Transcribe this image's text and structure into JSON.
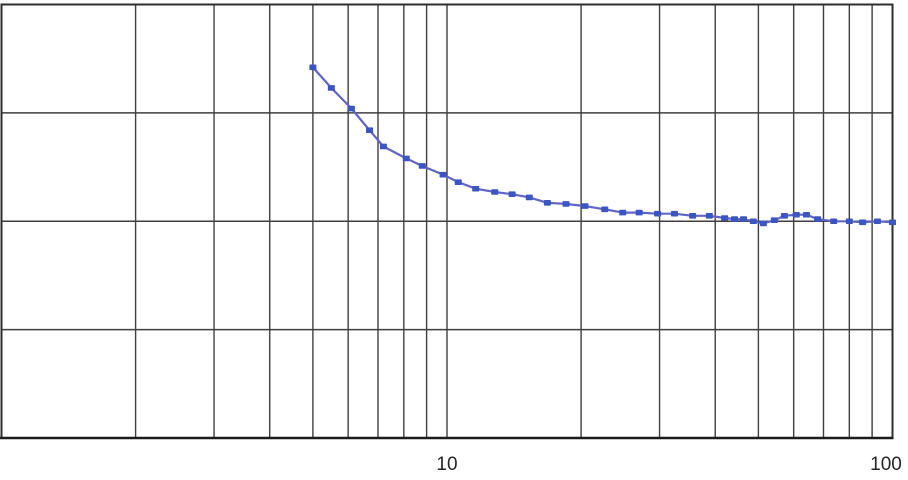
{
  "page": {
    "background": "#ffffff"
  },
  "chart_data": {
    "type": "line",
    "title": "",
    "xlabel": "",
    "ylabel": "",
    "legend": false,
    "grid": true,
    "x_axis": {
      "scale": "log",
      "range": [
        1,
        100
      ],
      "gridlines": [
        1,
        2,
        3,
        4,
        5,
        6,
        7,
        8,
        9,
        10,
        20,
        30,
        40,
        50,
        60,
        70,
        80,
        90,
        100
      ],
      "ticks": [
        {
          "value": 10,
          "label": "10"
        },
        {
          "value": 100,
          "label": "100"
        }
      ]
    },
    "y_axis": {
      "scale": "linear",
      "range": [
        0,
        4
      ],
      "gridline_step": 1,
      "ticks": []
    },
    "series": [
      {
        "marker": "square",
        "marker_color": "#3b55c2",
        "line_color": "#5f65c5",
        "points": [
          [
            5.0,
            3.42
          ],
          [
            5.5,
            3.23
          ],
          [
            6.1,
            3.04
          ],
          [
            6.7,
            2.84
          ],
          [
            7.2,
            2.69
          ],
          [
            8.1,
            2.58
          ],
          [
            8.8,
            2.51
          ],
          [
            9.8,
            2.43
          ],
          [
            10.6,
            2.36
          ],
          [
            11.6,
            2.3
          ],
          [
            12.8,
            2.27
          ],
          [
            14.0,
            2.25
          ],
          [
            15.3,
            2.22
          ],
          [
            16.8,
            2.17
          ],
          [
            18.5,
            2.16
          ],
          [
            20.4,
            2.14
          ],
          [
            22.6,
            2.11
          ],
          [
            24.8,
            2.08
          ],
          [
            27.0,
            2.08
          ],
          [
            29.7,
            2.07
          ],
          [
            32.4,
            2.07
          ],
          [
            35.6,
            2.05
          ],
          [
            38.8,
            2.05
          ],
          [
            42.0,
            2.03
          ],
          [
            44.2,
            2.02
          ],
          [
            46.3,
            2.02
          ],
          [
            48.7,
            2.0
          ],
          [
            51.3,
            1.98
          ],
          [
            54.3,
            2.01
          ],
          [
            57.2,
            2.05
          ],
          [
            60.8,
            2.06
          ],
          [
            64.1,
            2.06
          ],
          [
            67.9,
            2.02
          ],
          [
            73.8,
            2.0
          ],
          [
            80.0,
            2.0
          ],
          [
            85.7,
            1.99
          ],
          [
            92.5,
            2.0
          ],
          [
            100,
            1.99
          ]
        ]
      }
    ],
    "plot_border_color": "#2e2e2e",
    "axis_line_color": "#1c1c1c",
    "gridline_color": "#3f3f3f",
    "tick_label_color": "#262626",
    "background": "#ffffff"
  }
}
